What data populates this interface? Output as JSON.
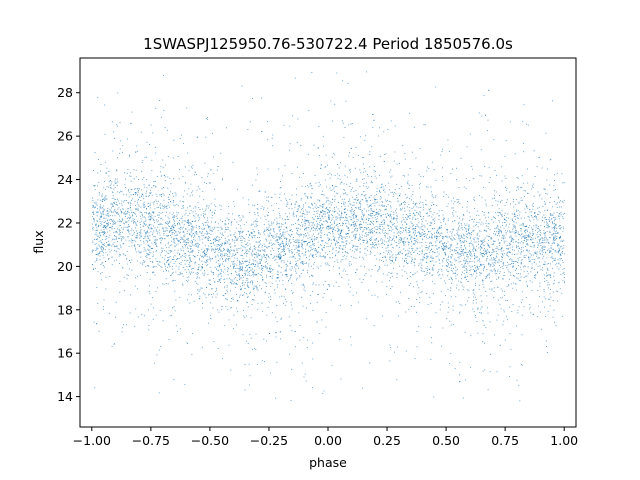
{
  "chart_data": {
    "type": "scatter",
    "title": "1SWASPJ125950.76-530722.4 Period 1850576.0s",
    "xlabel": "phase",
    "ylabel": "flux",
    "xlim": [
      -1.05,
      1.05
    ],
    "ylim": [
      12.6,
      29.6
    ],
    "xticks": [
      -1.0,
      -0.75,
      -0.5,
      -0.25,
      0.0,
      0.25,
      0.5,
      0.75,
      1.0
    ],
    "xtick_labels": [
      "−1.00",
      "−0.75",
      "−0.50",
      "−0.25",
      "0.00",
      "0.25",
      "0.50",
      "0.75",
      "1.00"
    ],
    "yticks": [
      14,
      16,
      18,
      20,
      22,
      24,
      26,
      28
    ],
    "ytick_labels": [
      "14",
      "16",
      "18",
      "20",
      "22",
      "24",
      "26",
      "28"
    ],
    "grid": false,
    "marker_color": "#1f77b4",
    "series": [
      {
        "x": [
          -1.0,
          -0.9,
          -0.8,
          -0.7,
          -0.6,
          -0.5,
          -0.4,
          -0.3,
          -0.2,
          -0.1,
          0.0,
          0.1,
          0.2,
          0.3,
          0.4,
          0.5,
          0.6,
          0.7,
          0.8,
          0.9,
          1.0
        ],
        "y": [
          21.6,
          22.3,
          22.0,
          21.7,
          21.4,
          20.8,
          20.3,
          20.4,
          20.9,
          21.4,
          21.7,
          22.0,
          22.0,
          21.7,
          21.4,
          20.8,
          20.4,
          20.7,
          21.2,
          21.4,
          21.3
        ]
      }
    ]
  }
}
